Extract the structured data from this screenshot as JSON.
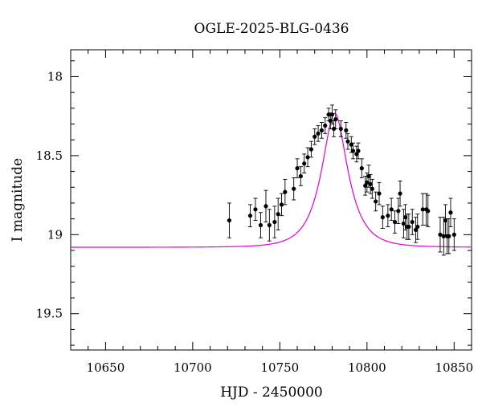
{
  "chart_data": {
    "type": "scatter",
    "title": "OGLE-2025-BLG-0436",
    "xlabel": "HJD - 2450000",
    "ylabel": "I magnitude",
    "xlim": [
      10630,
      10860
    ],
    "ylim": [
      19.73,
      17.83
    ],
    "y_inverted": true,
    "grid": false,
    "x_ticks": [
      10650,
      10700,
      10750,
      10800,
      10850
    ],
    "x_tick_labels": [
      "10650",
      "10700",
      "10750",
      "10800",
      "10850"
    ],
    "y_ticks": [
      18,
      18.5,
      19,
      19.5
    ],
    "y_tick_labels": [
      "18",
      "18.5",
      "19",
      "19.5"
    ],
    "colors": {
      "points": "#000000",
      "model": "#e000e0"
    },
    "model_curve": {
      "t0": 10781.5,
      "tE": 12.9,
      "u0": 0.5,
      "i_base": 19.08,
      "x_range": [
        10630,
        10860
      ],
      "color": "#e000e0"
    },
    "series": [
      {
        "x": [
          10721,
          10733,
          10736,
          10739,
          10742,
          10744,
          10747,
          10749,
          10751,
          10753,
          10758,
          10760,
          10762,
          10764,
          10766,
          10768,
          10770,
          10772,
          10774,
          10776,
          10778,
          10779,
          10780,
          10781,
          10782,
          10785,
          10788,
          10789,
          10791,
          10792,
          10794,
          10795,
          10797,
          10799,
          10800,
          10801,
          10802,
          10803,
          10805,
          10807,
          10809,
          10812,
          10814,
          10816,
          10818,
          10819,
          10821,
          10822,
          10823,
          10824,
          10826,
          10828,
          10829,
          10832,
          10834,
          10835,
          10842,
          10844,
          10845,
          10846,
          10847,
          10848,
          10850
        ],
        "y": [
          18.91,
          18.88,
          18.84,
          18.94,
          18.82,
          18.94,
          18.92,
          18.87,
          18.81,
          18.73,
          18.71,
          18.58,
          18.63,
          18.55,
          18.51,
          18.46,
          18.38,
          18.36,
          18.34,
          18.31,
          18.24,
          18.28,
          18.24,
          18.33,
          18.27,
          18.33,
          18.34,
          18.41,
          18.43,
          18.47,
          18.49,
          18.47,
          18.58,
          18.69,
          18.67,
          18.63,
          18.68,
          18.71,
          18.79,
          18.74,
          18.89,
          18.88,
          18.84,
          18.92,
          18.85,
          18.74,
          18.93,
          18.89,
          18.95,
          18.95,
          18.92,
          18.97,
          18.95,
          18.84,
          18.84,
          18.85,
          19.0,
          19.01,
          18.91,
          19.01,
          19.01,
          18.86,
          19.0
        ],
        "err": [
          0.11,
          0.07,
          0.07,
          0.08,
          0.1,
          0.1,
          0.1,
          0.1,
          0.07,
          0.08,
          0.07,
          0.06,
          0.06,
          0.06,
          0.06,
          0.05,
          0.05,
          0.05,
          0.05,
          0.05,
          0.04,
          0.05,
          0.06,
          0.05,
          0.06,
          0.05,
          0.05,
          0.05,
          0.05,
          0.05,
          0.05,
          0.05,
          0.06,
          0.06,
          0.06,
          0.07,
          0.06,
          0.06,
          0.06,
          0.07,
          0.07,
          0.07,
          0.07,
          0.07,
          0.08,
          0.08,
          0.09,
          0.08,
          0.08,
          0.08,
          0.08,
          0.08,
          0.08,
          0.1,
          0.1,
          0.1,
          0.11,
          0.12,
          0.1,
          0.11,
          0.11,
          0.09,
          0.1
        ]
      }
    ]
  }
}
